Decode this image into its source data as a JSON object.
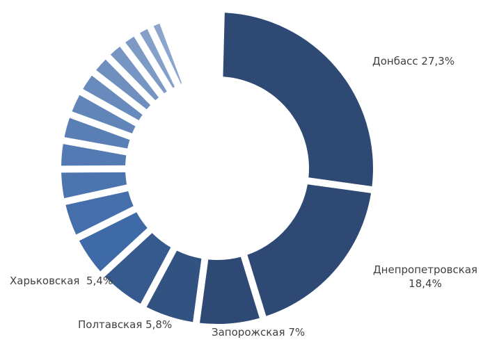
{
  "chart_data": {
    "type": "pie",
    "variant": "donut",
    "categories": [
      "Донбасс",
      "Днепропетровская",
      "Запорожская",
      "Полтавская",
      "Харьковская",
      "",
      "",
      "",
      "",
      "",
      "",
      "",
      "",
      "",
      "",
      "",
      "",
      "",
      "",
      "",
      "",
      "",
      "",
      "",
      ""
    ],
    "values": [
      27.3,
      18.4,
      7.0,
      5.8,
      5.4,
      4.6,
      4.0,
      3.4,
      3.0,
      2.8,
      2.6,
      2.4,
      2.2,
      2.0,
      1.8,
      1.6,
      1.4,
      1.2,
      1.0,
      0.9,
      0.8,
      0.7,
      0.6,
      0.5,
      0.5
    ],
    "labels": [
      {
        "name": "Донбасс",
        "value": "27,3%"
      },
      {
        "name": "Днепропетровская",
        "value": "18,4%"
      },
      {
        "name": "Запорожская",
        "value": "7%"
      },
      {
        "name": "Полтавская",
        "value": "5,8%"
      },
      {
        "name": "Харьковская",
        "value": "5,4%"
      }
    ],
    "colors": {
      "dark": "#2e4a74",
      "mid": "#3e6aa8",
      "light": "#c3d0e6"
    },
    "legend": "none"
  }
}
